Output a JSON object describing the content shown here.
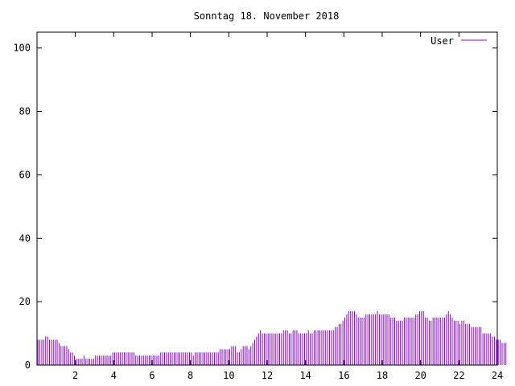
{
  "chart_data": {
    "type": "bar",
    "title": "Sonntag 18. November 2018",
    "xlabel": "",
    "ylabel": "",
    "xlim": [
      0,
      24
    ],
    "ylim": [
      0,
      105
    ],
    "xticks": [
      "2",
      "4",
      "6",
      "8",
      "10",
      "12",
      "14",
      "16",
      "18",
      "20",
      "22",
      "24"
    ],
    "yticks": [
      "0",
      "20",
      "40",
      "60",
      "80",
      "100"
    ],
    "legend_position": "top-right",
    "grid": false,
    "series": [
      {
        "name": "User",
        "color": "#9400d3",
        "bin_hours": 0.1,
        "values": [
          8,
          8,
          8,
          8,
          9,
          9,
          8,
          8,
          8,
          8,
          8,
          7,
          6,
          6,
          6,
          6,
          5,
          4,
          4,
          3,
          2,
          2,
          2,
          2,
          3,
          2,
          2,
          2,
          2,
          2,
          3,
          3,
          3,
          3,
          3,
          3,
          3,
          3,
          3,
          4,
          4,
          4,
          4,
          4,
          4,
          4,
          4,
          4,
          4,
          4,
          4,
          3,
          3,
          3,
          3,
          3,
          3,
          3,
          3,
          3,
          3,
          3,
          3,
          3,
          4,
          4,
          4,
          4,
          4,
          4,
          4,
          4,
          4,
          4,
          4,
          4,
          4,
          4,
          4,
          4,
          4,
          3,
          4,
          4,
          4,
          4,
          4,
          4,
          4,
          4,
          4,
          4,
          4,
          4,
          4,
          5,
          5,
          5,
          5,
          5,
          5,
          6,
          6,
          6,
          4,
          4,
          5,
          6,
          6,
          6,
          5,
          6,
          7,
          8,
          9,
          10,
          11,
          10,
          10,
          10,
          10,
          10,
          10,
          10,
          10,
          10,
          10,
          10,
          11,
          11,
          11,
          10,
          10,
          11,
          11,
          11,
          10,
          10,
          10,
          10,
          10,
          11,
          10,
          10,
          11,
          11,
          11,
          11,
          11,
          11,
          11,
          11,
          11,
          11,
          11,
          12,
          12,
          13,
          13,
          14,
          15,
          16,
          17,
          17,
          17,
          17,
          16,
          15,
          15,
          15,
          15,
          16,
          16,
          16,
          16,
          16,
          16,
          17,
          16,
          16,
          16,
          16,
          16,
          16,
          15,
          15,
          15,
          14,
          14,
          14,
          14,
          15,
          15,
          15,
          15,
          15,
          15,
          16,
          16,
          17,
          17,
          17,
          15,
          15,
          14,
          14,
          15,
          15,
          15,
          15,
          15,
          15,
          15,
          16,
          17,
          16,
          15,
          14,
          14,
          14,
          13,
          14,
          14,
          13,
          13,
          13,
          12,
          12,
          12,
          12,
          12,
          12,
          10,
          10,
          10,
          10,
          10,
          9,
          9,
          8,
          8,
          8,
          7,
          7,
          7
        ]
      }
    ]
  }
}
